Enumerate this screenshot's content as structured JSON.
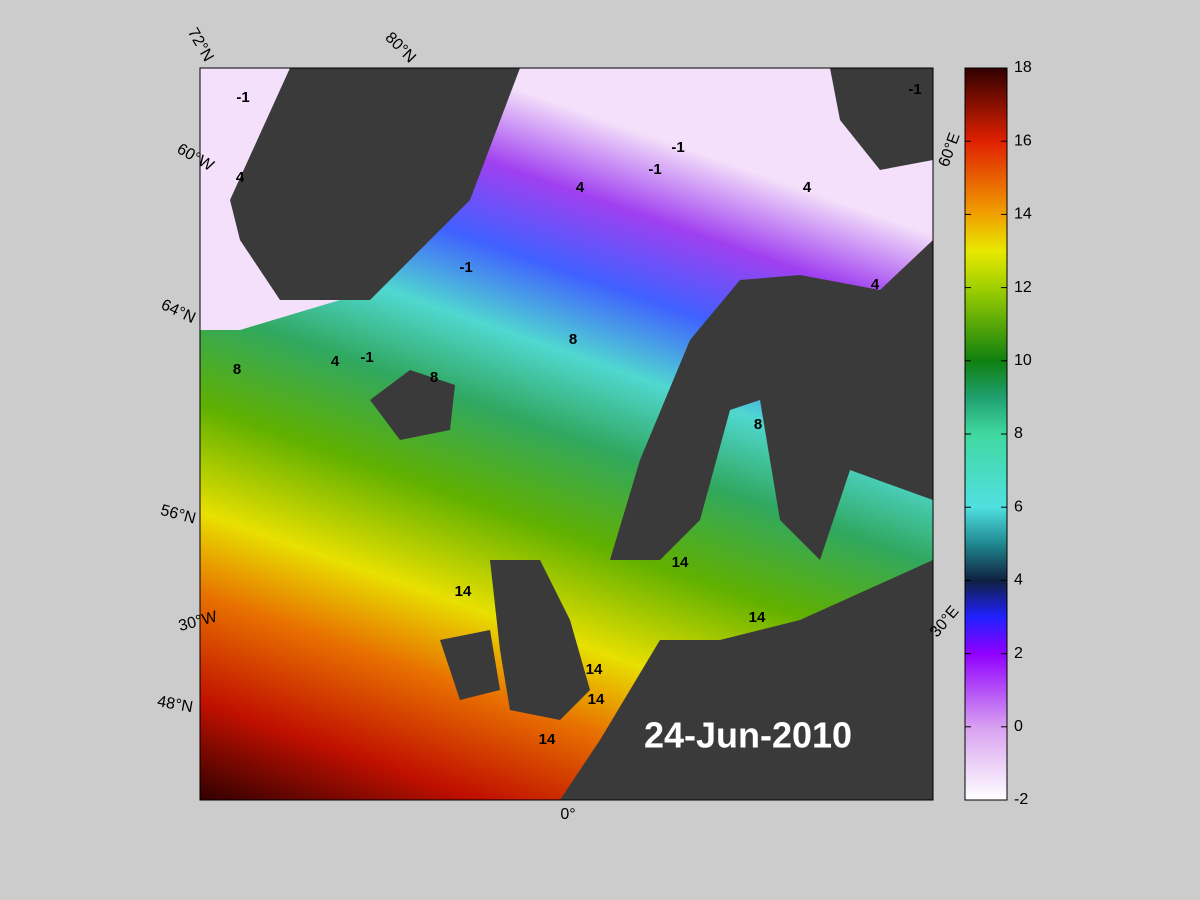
{
  "map": {
    "date": "24-Jun-2010",
    "graticule_labels": [
      "72°N",
      "80°N",
      "60°W",
      "64°N",
      "56°N",
      "30°W",
      "48°N",
      "0°",
      "60°E",
      "30°E"
    ],
    "contour_labels": [
      -1,
      -1,
      -1,
      -1,
      -1,
      -1,
      4,
      4,
      4,
      4,
      4,
      8,
      8,
      8,
      8,
      14,
      14,
      14,
      14,
      14,
      14
    ]
  },
  "colorbar": {
    "lim": [
      -2,
      18
    ],
    "ticks": [
      -2,
      0,
      2,
      4,
      6,
      8,
      10,
      12,
      14,
      16,
      18
    ]
  }
}
